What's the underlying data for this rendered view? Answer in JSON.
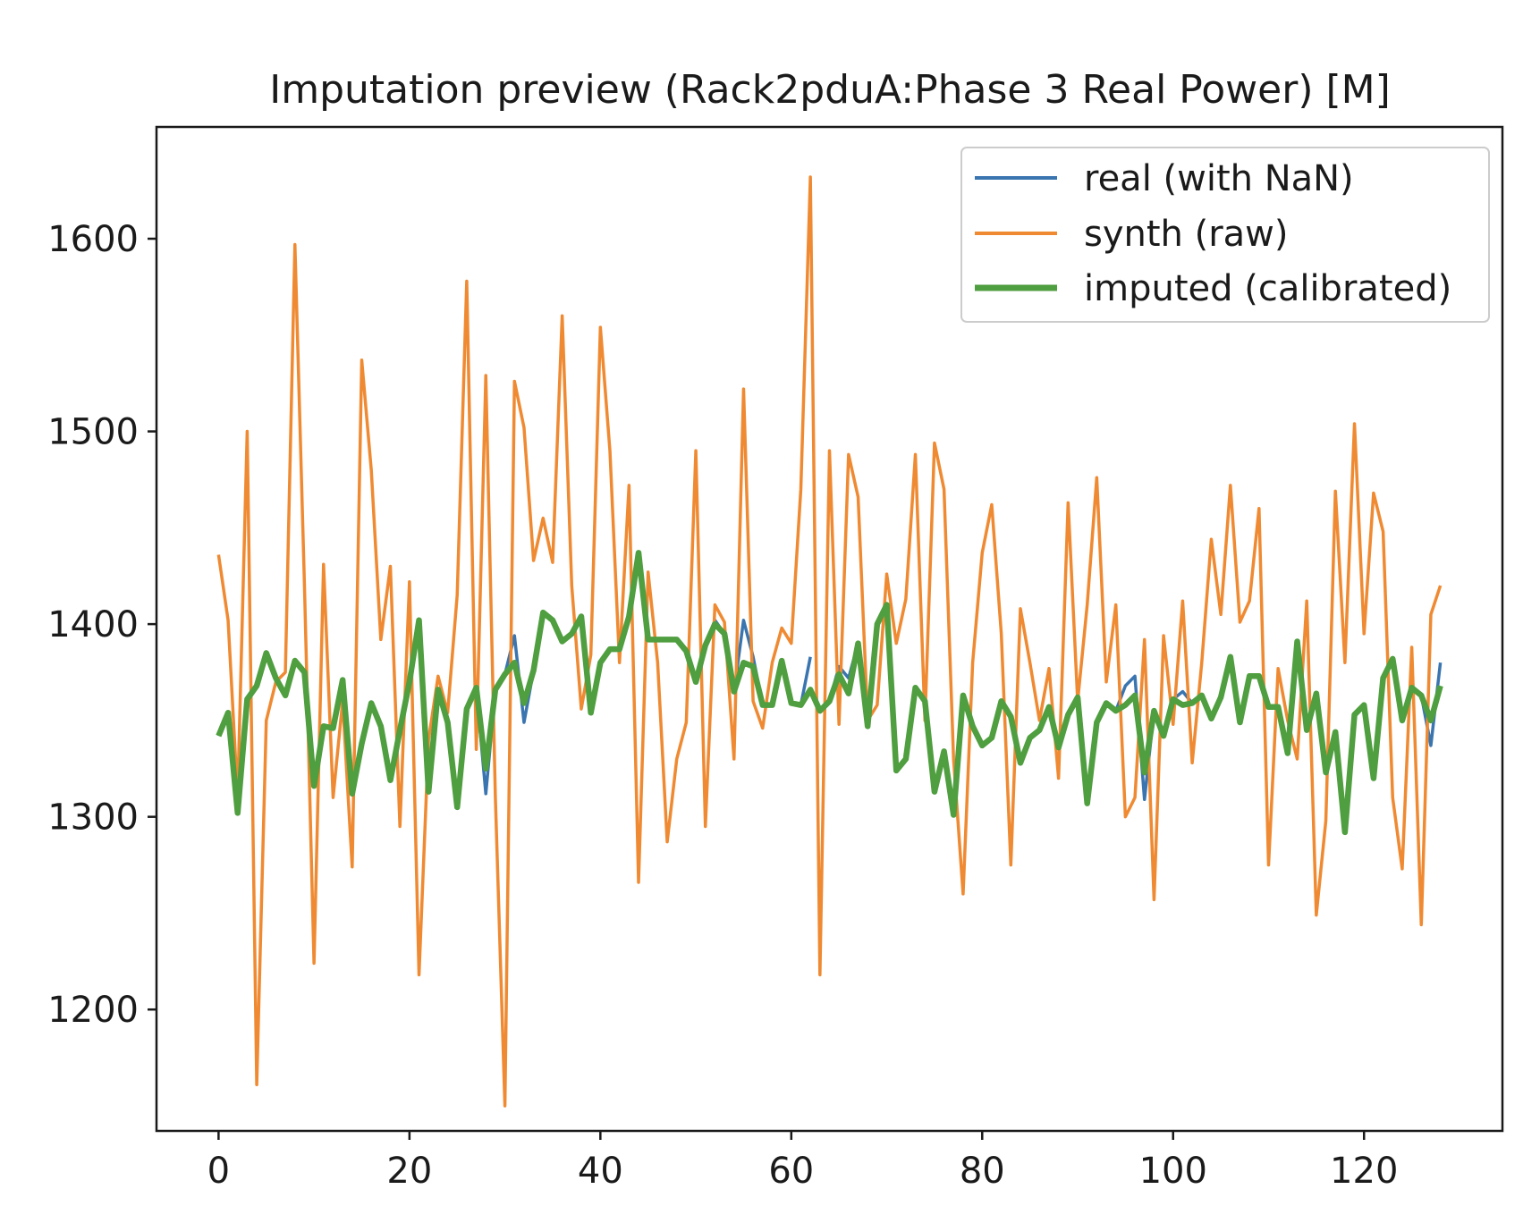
{
  "chart_data": {
    "type": "line",
    "title": "Imputation preview (Rack2pduA:Phase 3 Real Power)  [M]",
    "xlabel": "",
    "ylabel": "",
    "xlim": [
      -6.5,
      134.5
    ],
    "ylim": [
      1137,
      1658
    ],
    "xticks": [
      0,
      20,
      40,
      60,
      80,
      100,
      120
    ],
    "yticks": [
      1200,
      1300,
      1400,
      1500,
      1600
    ],
    "grid": false,
    "legend_position": "top-right",
    "series": [
      {
        "name": "real (with NaN)",
        "color": "#3a75b0",
        "values": [
          1342,
          1354,
          1302,
          1361,
          1368,
          1385,
          1372,
          1363,
          1381,
          1375,
          1316,
          1347,
          1346,
          1371,
          1312,
          1338,
          1359,
          1347,
          1319,
          1345,
          1370,
          1402,
          1313,
          1366,
          1349,
          1305,
          1356,
          1367,
          1312,
          1366,
          1374,
          1394,
          1349,
          1376,
          1406,
          1402,
          1391,
          1395,
          1404,
          1354,
          1380,
          1387,
          1387,
          1404,
          1437,
          1392,
          1392,
          1392,
          1392,
          1386,
          1370,
          1389,
          1402,
          1395,
          1365,
          1402,
          1383,
          1358,
          1358,
          1381,
          1359,
          1358,
          1383,
          null,
          1360,
          1378,
          1372,
          1390,
          1347,
          1400,
          1410,
          1324,
          1330,
          1367,
          1360,
          1313,
          1334,
          1301,
          1363,
          1347,
          1337,
          1341,
          1360,
          1352,
          1328,
          1341,
          1345,
          1357,
          1336,
          1353,
          1362,
          1307,
          1349,
          1359,
          1355,
          1368,
          1373,
          1309,
          1355,
          1342,
          1361,
          1365,
          1359,
          1363,
          1351,
          1362,
          1383,
          1349,
          1373,
          1373,
          1357,
          1357,
          1333,
          1391,
          1345,
          1364,
          1323,
          1344,
          1292,
          1353,
          1358,
          1320,
          1372,
          1382,
          1350,
          1367,
          1363,
          1337,
          1380
        ]
      },
      {
        "name": "synth (raw)",
        "color": "#ef8a32",
        "values": [
          1436,
          1402,
          1310,
          1500,
          1161,
          1350,
          1370,
          1375,
          1597,
          1420,
          1224,
          1431,
          1310,
          1360,
          1274,
          1537,
          1480,
          1392,
          1430,
          1295,
          1422,
          1218,
          1340,
          1373,
          1354,
          1415,
          1578,
          1335,
          1529,
          1310,
          1150,
          1526,
          1502,
          1433,
          1455,
          1432,
          1560,
          1420,
          1356,
          1384,
          1554,
          1490,
          1380,
          1472,
          1266,
          1427,
          1380,
          1287,
          1330,
          1349,
          1490,
          1295,
          1410,
          1401,
          1330,
          1522,
          1360,
          1346,
          1380,
          1398,
          1390,
          1470,
          1632,
          1218,
          1490,
          1348,
          1488,
          1466,
          1350,
          1358,
          1426,
          1390,
          1413,
          1488,
          1350,
          1494,
          1470,
          1330,
          1260,
          1380,
          1437,
          1462,
          1395,
          1275,
          1408,
          1380,
          1350,
          1377,
          1320,
          1463,
          1360,
          1410,
          1476,
          1370,
          1410,
          1300,
          1310,
          1392,
          1257,
          1394,
          1348,
          1412,
          1328,
          1380,
          1444,
          1405,
          1472,
          1401,
          1412,
          1460,
          1275,
          1377,
          1350,
          1330,
          1412,
          1249,
          1298,
          1469,
          1380,
          1504,
          1395,
          1468,
          1448,
          1310,
          1273,
          1388,
          1244,
          1405,
          1420
        ]
      },
      {
        "name": "imputed (calibrated)",
        "color": "#4f9e3f",
        "values": [
          1342,
          1354,
          1302,
          1361,
          1368,
          1385,
          1372,
          1363,
          1381,
          1375,
          1316,
          1347,
          1346,
          1371,
          1312,
          1338,
          1359,
          1347,
          1319,
          1345,
          1370,
          1402,
          1313,
          1366,
          1349,
          1305,
          1356,
          1367,
          1325,
          1366,
          1374,
          1380,
          1359,
          1376,
          1406,
          1402,
          1391,
          1395,
          1404,
          1354,
          1380,
          1387,
          1387,
          1404,
          1437,
          1392,
          1392,
          1392,
          1392,
          1386,
          1370,
          1389,
          1400,
          1395,
          1365,
          1380,
          1378,
          1358,
          1358,
          1381,
          1359,
          1358,
          1366,
          1355,
          1360,
          1374,
          1364,
          1390,
          1347,
          1400,
          1410,
          1324,
          1330,
          1367,
          1360,
          1313,
          1334,
          1301,
          1363,
          1347,
          1337,
          1341,
          1360,
          1352,
          1328,
          1341,
          1345,
          1357,
          1336,
          1353,
          1362,
          1307,
          1349,
          1359,
          1355,
          1358,
          1363,
          1323,
          1355,
          1342,
          1361,
          1358,
          1359,
          1363,
          1351,
          1362,
          1383,
          1349,
          1373,
          1373,
          1357,
          1357,
          1333,
          1391,
          1345,
          1364,
          1323,
          1344,
          1292,
          1353,
          1358,
          1320,
          1372,
          1382,
          1350,
          1367,
          1363,
          1350,
          1368
        ]
      }
    ]
  }
}
